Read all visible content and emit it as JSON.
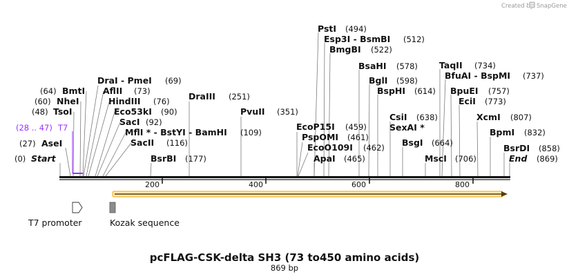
{
  "title": "pcFLAG-CSK-delta SH3 (73 to450 amino acids)",
  "subtitle": "869 bp",
  "credit": {
    "prefix": "Created by",
    "brand": "SnapGene"
  },
  "colors": {
    "t7": "#9b30ff",
    "orf": "#f5a800",
    "kozak": "#8c8c8c"
  },
  "ticks": [
    "200",
    "400",
    "600",
    "800"
  ],
  "features": {
    "t7_label": "T7",
    "t7_range": "(28 .. 47)",
    "t7_promoter": "T7 promoter",
    "kozak": "Kozak sequence"
  },
  "sites": {
    "start": {
      "name": "Start",
      "pos": "(0)"
    },
    "asei": {
      "name": "AseI",
      "pos": "(27)"
    },
    "tsoi": {
      "name": "TsoI",
      "pos": "(48)"
    },
    "nhei": {
      "name": "NheI",
      "pos": "(60)"
    },
    "bmti": {
      "name": "BmtI",
      "pos": "(64)"
    },
    "dra1": {
      "name": "DraI  - PmeI",
      "pos": "(69)"
    },
    "aflii": {
      "name": "AflII",
      "pos": "(73)"
    },
    "hind": {
      "name": "HindIII",
      "pos": "(76)"
    },
    "eco53": {
      "name": "Eco53kI",
      "pos": "(90)"
    },
    "saci": {
      "name": "SacI",
      "pos": "(92)"
    },
    "mfli": {
      "name": "MflI * - BstYI  - BamHI",
      "pos": "(109)"
    },
    "sacii": {
      "name": "SacII",
      "pos": "(116)"
    },
    "bsrbi": {
      "name": "BsrBI",
      "pos": "(177)"
    },
    "draiii": {
      "name": "DraIII",
      "pos": "(251)"
    },
    "pvuii": {
      "name": "PvuII",
      "pos": "(351)"
    },
    "ecop15": {
      "name": "EcoP15I",
      "pos": "(459)"
    },
    "pspomi": {
      "name": "PspOMI",
      "pos": "(461)"
    },
    "eco0109": {
      "name": "EcoO109I",
      "pos": "(462)"
    },
    "apai": {
      "name": "ApaI",
      "pos": "(465)"
    },
    "psti": {
      "name": "PstI",
      "pos": "(494)"
    },
    "esp3i": {
      "name": "Esp3I  - BsmBI",
      "pos": "(512)"
    },
    "bmgbi": {
      "name": "BmgBI",
      "pos": "(522)"
    },
    "bsahi": {
      "name": "BsaHI",
      "pos": "(578)"
    },
    "bgli": {
      "name": "BglI",
      "pos": "(598)"
    },
    "bsphi": {
      "name": "BspHI",
      "pos": "(614)"
    },
    "csii": {
      "name": "CsiI",
      "pos": "(638)"
    },
    "sexai": {
      "name": "SexAI *",
      "pos": ""
    },
    "bsgi": {
      "name": "BsgI",
      "pos": "(664)"
    },
    "msci": {
      "name": "MscI",
      "pos": "(706)"
    },
    "taqii": {
      "name": "TaqII",
      "pos": "(734)"
    },
    "bfuai": {
      "name": "BfuAI  - BspMI",
      "pos": "(737)"
    },
    "bpuei": {
      "name": "BpuEI",
      "pos": "(757)"
    },
    "ecii": {
      "name": "EciI",
      "pos": "(773)"
    },
    "xcmi": {
      "name": "XcmI",
      "pos": "(807)"
    },
    "bpmi": {
      "name": "BpmI",
      "pos": "(832)"
    },
    "bsrdi": {
      "name": "BsrDI",
      "pos": "(858)"
    },
    "end": {
      "name": "End",
      "pos": "(869)"
    }
  }
}
